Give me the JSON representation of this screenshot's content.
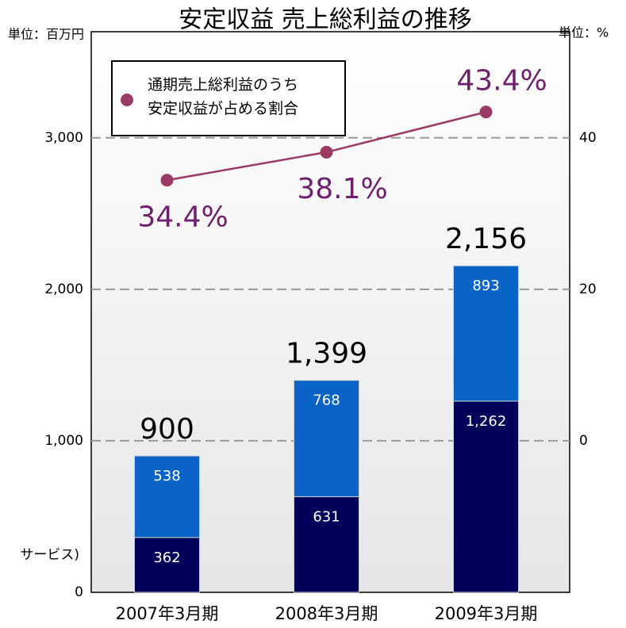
{
  "chart_data": {
    "type": "bar",
    "title": "安定収益 売上総利益の推移",
    "y_unit": "単位：百万円",
    "y2_unit": "単位：%",
    "annotation": "サービス)",
    "categories": [
      "2007年3月期",
      "2008年3月期",
      "2009年3月期"
    ],
    "stacked": true,
    "series": [
      {
        "color": "#00005a",
        "values": [
          362,
          631,
          1262
        ],
        "value_labels": [
          "362",
          "631",
          "1,262"
        ]
      },
      {
        "color": "#0a64c8",
        "values": [
          538,
          768,
          893
        ],
        "value_labels": [
          "538",
          "768",
          "893"
        ]
      },
      {
        "name": "通期売上総利益のうち\n安定収益が占める割合",
        "type": "line",
        "axis": "y2",
        "color": "#9b3a65",
        "values": [
          34.4,
          38.1,
          43.4
        ],
        "value_labels": [
          "34.4%",
          "38.1%",
          "43.4%"
        ]
      }
    ],
    "totals": [
      900,
      1399,
      2156
    ],
    "total_labels": [
      "900",
      "1,399",
      "2,156"
    ],
    "ylim": [
      0,
      3700
    ],
    "yticks": [
      0,
      {
        "value": 1000,
        "label": "1,000"
      },
      {
        "value": 2000,
        "label": "2,000"
      },
      {
        "value": 3000,
        "label": "3,000"
      }
    ],
    "y2lim": [
      -20,
      54
    ],
    "y2ticks": [
      0,
      20,
      40
    ],
    "grid": true
  }
}
